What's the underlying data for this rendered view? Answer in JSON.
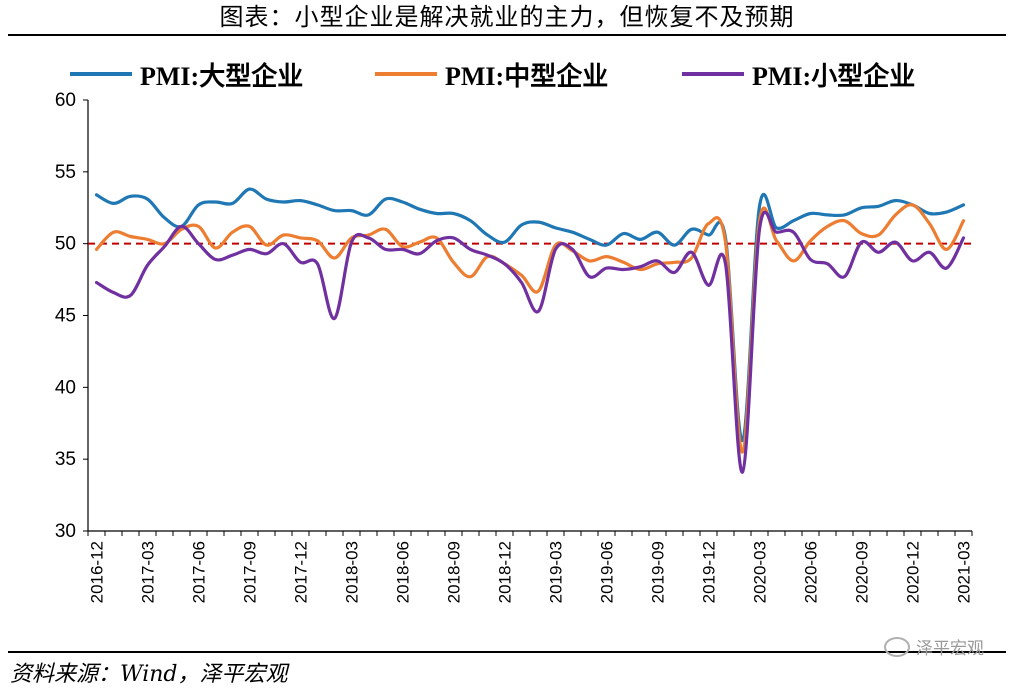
{
  "title": "图表：小型企业是解决就业的主力，但恢复不及预期",
  "source": "资料来源：Wind，泽平宏观",
  "watermark": "泽平宏观",
  "chart_data": {
    "type": "line",
    "ylim": [
      30,
      60
    ],
    "yticks": [
      30,
      35,
      40,
      45,
      50,
      55,
      60
    ],
    "reference_line": 50,
    "reference_color": "#c00000",
    "xtick_labels": [
      "2016-12",
      "2017-03",
      "2017-06",
      "2017-09",
      "2017-12",
      "2018-03",
      "2018-06",
      "2018-09",
      "2018-12",
      "2019-03",
      "2019-06",
      "2019-09",
      "2019-12",
      "2020-03",
      "2020-06",
      "2020-09",
      "2020-12",
      "2021-03"
    ],
    "x": [
      "2016-12",
      "2017-01",
      "2017-02",
      "2017-03",
      "2017-04",
      "2017-05",
      "2017-06",
      "2017-07",
      "2017-08",
      "2017-09",
      "2017-10",
      "2017-11",
      "2017-12",
      "2018-01",
      "2018-02",
      "2018-03",
      "2018-04",
      "2018-05",
      "2018-06",
      "2018-07",
      "2018-08",
      "2018-09",
      "2018-10",
      "2018-11",
      "2018-12",
      "2019-01",
      "2019-02",
      "2019-03",
      "2019-04",
      "2019-05",
      "2019-06",
      "2019-07",
      "2019-08",
      "2019-09",
      "2019-10",
      "2019-11",
      "2019-12",
      "2020-01",
      "2020-02",
      "2020-03",
      "2020-04",
      "2020-05",
      "2020-06",
      "2020-07",
      "2020-08",
      "2020-09",
      "2020-10",
      "2020-11",
      "2020-12",
      "2021-01",
      "2021-02",
      "2021-03"
    ],
    "series": [
      {
        "name": "PMI:大型企业",
        "color": "#1f77b4",
        "values": [
          53.4,
          52.8,
          53.3,
          53.1,
          51.8,
          51.2,
          52.7,
          52.9,
          52.8,
          53.8,
          53.1,
          52.9,
          53.0,
          52.7,
          52.3,
          52.3,
          52.0,
          53.1,
          52.9,
          52.4,
          52.1,
          52.1,
          51.6,
          50.6,
          50.1,
          51.3,
          51.5,
          51.1,
          50.8,
          50.3,
          49.9,
          50.7,
          50.3,
          50.8,
          49.9,
          51.0,
          50.6,
          50.4,
          36.3,
          52.6,
          51.1,
          51.6,
          52.1,
          52.0,
          52.0,
          52.5,
          52.6,
          53.0,
          52.7,
          52.1,
          52.2,
          52.7
        ]
      },
      {
        "name": "PMI:中型企业",
        "color": "#ed7d31",
        "values": [
          49.6,
          50.8,
          50.5,
          50.3,
          50.0,
          51.0,
          51.2,
          49.7,
          50.8,
          51.2,
          49.9,
          50.6,
          50.4,
          50.2,
          49.0,
          50.4,
          50.6,
          51.0,
          49.8,
          50.1,
          50.4,
          48.7,
          47.7,
          49.1,
          48.6,
          47.8,
          46.7,
          49.9,
          49.5,
          48.8,
          49.1,
          48.7,
          48.2,
          48.6,
          48.7,
          49.0,
          51.4,
          50.1,
          35.5,
          51.6,
          50.2,
          48.8,
          50.2,
          51.2,
          51.6,
          50.7,
          50.6,
          52.0,
          52.7,
          51.4,
          49.6,
          51.6
        ]
      },
      {
        "name": "PMI:小型企业",
        "color": "#7030a0",
        "values": [
          47.3,
          46.6,
          46.4,
          48.5,
          49.8,
          51.2,
          50.0,
          48.9,
          49.2,
          49.6,
          49.3,
          50.0,
          48.7,
          48.6,
          44.8,
          50.1,
          50.4,
          49.6,
          49.6,
          49.3,
          50.2,
          50.4,
          49.6,
          49.2,
          48.6,
          47.3,
          45.3,
          49.6,
          49.6,
          47.7,
          48.3,
          48.2,
          48.4,
          48.8,
          48.0,
          49.4,
          47.1,
          48.6,
          34.1,
          51.0,
          50.8,
          50.8,
          48.9,
          48.6,
          47.7,
          50.1,
          49.4,
          50.1,
          48.8,
          49.4,
          48.3,
          50.4
        ]
      }
    ]
  }
}
